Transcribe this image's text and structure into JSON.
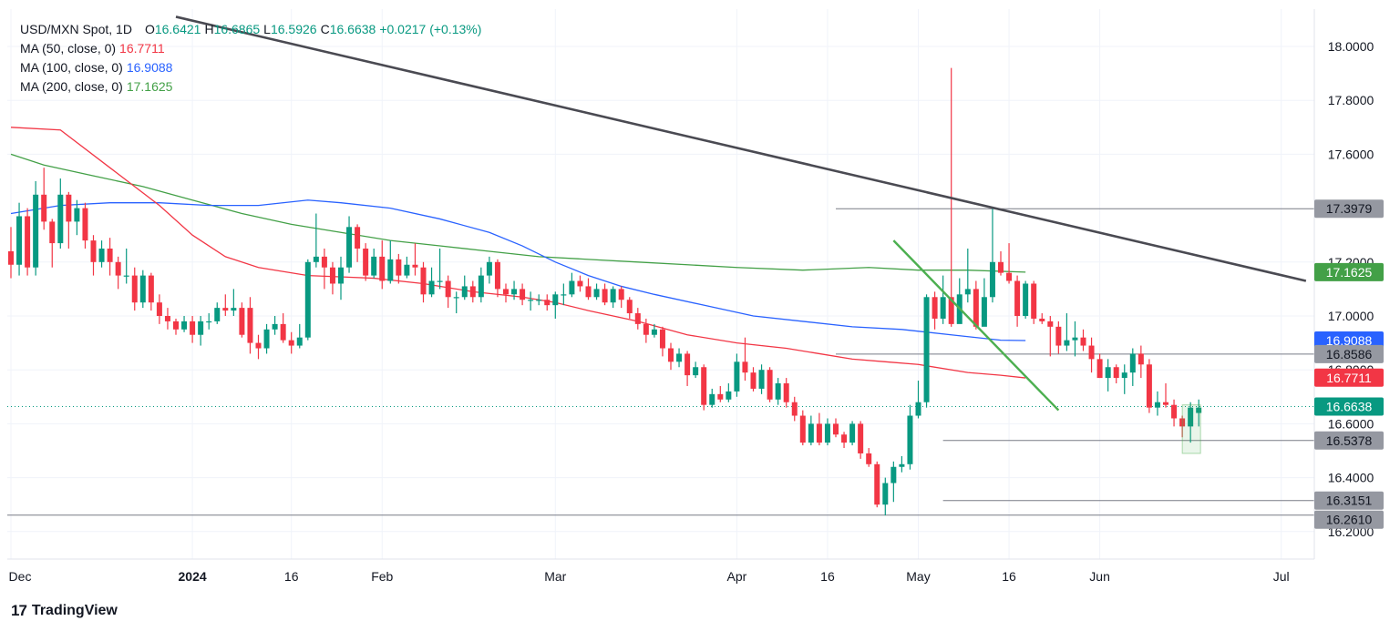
{
  "legend": {
    "symbol": "USD/MXN Spot, 1D",
    "o_label": "O",
    "o_value": "16.6421",
    "h_label": "H",
    "h_value": "16.6865",
    "l_label": "L",
    "l_value": "16.5926",
    "c_label": "C",
    "c_value": "16.6638",
    "change": "+0.0217 (+0.13%)",
    "ma50_label": "MA (50, close, 0)",
    "ma50_value": "16.7711",
    "ma100_label": "MA (100, close, 0)",
    "ma100_value": "16.9088",
    "ma200_label": "MA (200, close, 0)",
    "ma200_value": "17.1625"
  },
  "brand": {
    "logo": "17",
    "name": "TradingView"
  },
  "colors": {
    "up": "#089981",
    "down": "#f23645",
    "ma50": "#f23645",
    "ma100": "#2962ff",
    "ma200": "#43a047",
    "trendline": "#4a4a52",
    "downtrend": "#4caf50",
    "hline": "#787b86"
  },
  "chart_data": {
    "type": "candlestick",
    "title": "USD/MXN Spot, 1D",
    "ylim": [
      16.14,
      18.14
    ],
    "y_ticks": [
      "18.0000",
      "17.8000",
      "17.6000",
      "17.2000",
      "17.0000",
      "16.8000",
      "16.6000",
      "16.4000",
      "16.2000"
    ],
    "x_ticks": [
      "Dec",
      "2024",
      "16",
      "Feb",
      "Mar",
      "Apr",
      "16",
      "May",
      "16",
      "Jun",
      "Jul"
    ],
    "x_tick_positions": [
      0,
      22,
      34,
      45,
      66,
      88,
      99,
      110,
      121,
      132,
      154
    ],
    "price_labels": [
      {
        "text": "17.3979",
        "value": 17.3979,
        "kind": "level"
      },
      {
        "text": "17.1625",
        "value": 17.1625,
        "kind": "ma200"
      },
      {
        "text": "16.9088",
        "value": 16.9088,
        "kind": "ma100"
      },
      {
        "text": "16.8586",
        "value": 16.8586,
        "kind": "level"
      },
      {
        "text": "16.7711",
        "value": 16.7711,
        "kind": "ma50"
      },
      {
        "text": "16.6638",
        "value": 16.6638,
        "kind": "last"
      },
      {
        "text": "16.5378",
        "value": 16.5378,
        "kind": "level"
      },
      {
        "text": "16.3151",
        "value": 16.3151,
        "kind": "level"
      },
      {
        "text": "16.2610",
        "value": 16.261,
        "kind": "level"
      }
    ],
    "horizontal_levels": [
      {
        "value": 17.3979,
        "from_bar": 100
      },
      {
        "value": 16.8586,
        "from_bar": 100
      },
      {
        "value": 16.5378,
        "from_bar": 113
      },
      {
        "value": 16.3151,
        "from_bar": 113
      },
      {
        "value": 16.261,
        "from_bar": 0
      }
    ],
    "trendlines": [
      {
        "name": "long-term downtrend",
        "x1": 20,
        "y1": 18.11,
        "x2": 157,
        "y2": 17.13
      },
      {
        "name": "short-term downtrend",
        "x1": 107,
        "y1": 17.28,
        "x2": 127,
        "y2": 16.65
      }
    ],
    "candles": [
      [
        17.24,
        17.19,
        17.33,
        17.14
      ],
      [
        17.19,
        17.37,
        17.42,
        17.15
      ],
      [
        17.37,
        17.18,
        17.4,
        17.15
      ],
      [
        17.18,
        17.45,
        17.5,
        17.15
      ],
      [
        17.45,
        17.35,
        17.55,
        17.32
      ],
      [
        17.35,
        17.27,
        17.36,
        17.18
      ],
      [
        17.27,
        17.45,
        17.51,
        17.25
      ],
      [
        17.45,
        17.35,
        17.46,
        17.25
      ],
      [
        17.35,
        17.4,
        17.43,
        17.3
      ],
      [
        17.4,
        17.28,
        17.42,
        17.25
      ],
      [
        17.28,
        17.2,
        17.3,
        17.15
      ],
      [
        17.2,
        17.25,
        17.28,
        17.18
      ],
      [
        17.25,
        17.2,
        17.29,
        17.15
      ],
      [
        17.2,
        17.15,
        17.22,
        17.1
      ],
      [
        17.15,
        17.15,
        17.25,
        17.12
      ],
      [
        17.15,
        17.05,
        17.18,
        17.02
      ],
      [
        17.05,
        17.15,
        17.17,
        17.03
      ],
      [
        17.15,
        17.05,
        17.16,
        17.02
      ],
      [
        17.05,
        17.0,
        17.08,
        16.97
      ],
      [
        17.0,
        16.98,
        17.03,
        16.95
      ],
      [
        16.98,
        16.95,
        16.99,
        16.93
      ],
      [
        16.95,
        16.98,
        17.0,
        16.94
      ],
      [
        16.98,
        16.93,
        17.0,
        16.9
      ],
      [
        16.93,
        16.98,
        17.0,
        16.89
      ],
      [
        16.98,
        16.98,
        17.01,
        16.95
      ],
      [
        16.98,
        17.03,
        17.05,
        16.97
      ],
      [
        17.03,
        17.02,
        17.08,
        17.0
      ],
      [
        17.02,
        17.03,
        17.1,
        17.0
      ],
      [
        17.03,
        16.93,
        17.05,
        16.92
      ],
      [
        17.03,
        16.9,
        17.07,
        16.86
      ],
      [
        16.9,
        16.88,
        16.93,
        16.84
      ],
      [
        16.88,
        16.95,
        16.97,
        16.86
      ],
      [
        16.95,
        16.97,
        17.0,
        16.93
      ],
      [
        16.97,
        16.91,
        17.01,
        16.9
      ],
      [
        16.91,
        16.89,
        16.94,
        16.86
      ],
      [
        16.89,
        16.92,
        16.97,
        16.88
      ],
      [
        16.92,
        17.2,
        17.21,
        16.91
      ],
      [
        17.2,
        17.22,
        17.38,
        17.18
      ],
      [
        17.22,
        17.18,
        17.25,
        17.1
      ],
      [
        17.18,
        17.12,
        17.2,
        17.08
      ],
      [
        17.12,
        17.18,
        17.22,
        17.06
      ],
      [
        17.18,
        17.33,
        17.37,
        17.16
      ],
      [
        17.33,
        17.25,
        17.34,
        17.2
      ],
      [
        17.25,
        17.15,
        17.27,
        17.13
      ],
      [
        17.15,
        17.22,
        17.25,
        17.14
      ],
      [
        17.22,
        17.13,
        17.28,
        17.1
      ],
      [
        17.13,
        17.21,
        17.28,
        17.12
      ],
      [
        17.21,
        17.15,
        17.23,
        17.12
      ],
      [
        17.15,
        17.19,
        17.22,
        17.14
      ],
      [
        17.19,
        17.18,
        17.27,
        17.15
      ],
      [
        17.18,
        17.08,
        17.2,
        17.05
      ],
      [
        17.08,
        17.13,
        17.18,
        17.07
      ],
      [
        17.13,
        17.13,
        17.25,
        17.1
      ],
      [
        17.13,
        17.07,
        17.15,
        17.03
      ],
      [
        17.07,
        17.07,
        17.09,
        17.01
      ],
      [
        17.07,
        17.11,
        17.15,
        17.06
      ],
      [
        17.11,
        17.07,
        17.13,
        17.05
      ],
      [
        17.07,
        17.15,
        17.18,
        17.05
      ],
      [
        17.15,
        17.2,
        17.22,
        17.12
      ],
      [
        17.2,
        17.1,
        17.21,
        17.07
      ],
      [
        17.1,
        17.08,
        17.12,
        17.05
      ],
      [
        17.08,
        17.1,
        17.13,
        17.06
      ],
      [
        17.1,
        17.06,
        17.12,
        17.04
      ],
      [
        17.06,
        17.06,
        17.09,
        17.02
      ],
      [
        17.06,
        17.06,
        17.08,
        17.04
      ],
      [
        17.06,
        17.04,
        17.08,
        17.02
      ],
      [
        17.04,
        17.08,
        17.09,
        16.99
      ],
      [
        17.08,
        17.08,
        17.12,
        17.04
      ],
      [
        17.08,
        17.13,
        17.16,
        17.07
      ],
      [
        17.13,
        17.11,
        17.15,
        17.09
      ],
      [
        17.11,
        17.07,
        17.14,
        17.06
      ],
      [
        17.07,
        17.1,
        17.12,
        17.06
      ],
      [
        17.1,
        17.05,
        17.12,
        17.04
      ],
      [
        17.05,
        17.1,
        17.11,
        17.03
      ],
      [
        17.1,
        17.06,
        17.11,
        17.03
      ],
      [
        17.06,
        17.01,
        17.07,
        16.99
      ],
      [
        17.01,
        16.97,
        17.03,
        16.95
      ],
      [
        16.97,
        16.93,
        16.99,
        16.9
      ],
      [
        16.93,
        16.95,
        16.97,
        16.92
      ],
      [
        16.95,
        16.88,
        16.96,
        16.85
      ],
      [
        16.88,
        16.83,
        16.9,
        16.8
      ],
      [
        16.83,
        16.86,
        16.88,
        16.81
      ],
      [
        16.86,
        16.78,
        16.87,
        16.74
      ],
      [
        16.78,
        16.81,
        16.83,
        16.77
      ],
      [
        16.81,
        16.67,
        16.82,
        16.65
      ],
      [
        16.67,
        16.71,
        16.73,
        16.66
      ],
      [
        16.71,
        16.69,
        16.74,
        16.68
      ],
      [
        16.69,
        16.72,
        16.75,
        16.68
      ],
      [
        16.72,
        16.83,
        16.86,
        16.7
      ],
      [
        16.83,
        16.79,
        16.92,
        16.76
      ],
      [
        16.79,
        16.73,
        16.81,
        16.72
      ],
      [
        16.73,
        16.8,
        16.82,
        16.71
      ],
      [
        16.8,
        16.69,
        16.81,
        16.68
      ],
      [
        16.69,
        16.75,
        16.77,
        16.67
      ],
      [
        16.75,
        16.68,
        16.77,
        16.66
      ],
      [
        16.68,
        16.63,
        16.7,
        16.61
      ],
      [
        16.63,
        16.53,
        16.65,
        16.52
      ],
      [
        16.53,
        16.6,
        16.63,
        16.52
      ],
      [
        16.6,
        16.53,
        16.64,
        16.52
      ],
      [
        16.53,
        16.6,
        16.62,
        16.52
      ],
      [
        16.6,
        16.56,
        16.62,
        16.55
      ],
      [
        16.56,
        16.53,
        16.57,
        16.51
      ],
      [
        16.53,
        16.6,
        16.61,
        16.52
      ],
      [
        16.6,
        16.49,
        16.61,
        16.47
      ],
      [
        16.49,
        16.45,
        16.51,
        16.44
      ],
      [
        16.45,
        16.3,
        16.46,
        16.29
      ],
      [
        16.3,
        16.38,
        16.4,
        16.26
      ],
      [
        16.38,
        16.44,
        16.46,
        16.31
      ],
      [
        16.44,
        16.45,
        16.48,
        16.42
      ],
      [
        16.45,
        16.63,
        16.67,
        16.43
      ],
      [
        16.63,
        16.68,
        16.76,
        16.62
      ],
      [
        16.68,
        17.07,
        17.08,
        16.66
      ],
      [
        17.07,
        16.99,
        17.09,
        16.95
      ],
      [
        16.99,
        17.07,
        17.15,
        16.97
      ],
      [
        17.07,
        16.97,
        17.92,
        16.96
      ],
      [
        16.97,
        17.08,
        17.14,
        17.05
      ],
      [
        17.08,
        17.1,
        17.25,
        17.05
      ],
      [
        17.1,
        16.96,
        17.13,
        16.95
      ],
      [
        16.96,
        17.07,
        17.14,
        16.97
      ],
      [
        17.07,
        17.2,
        17.4,
        17.05
      ],
      [
        17.2,
        17.16,
        17.24,
        17.15
      ],
      [
        17.16,
        17.13,
        17.27,
        17.12
      ],
      [
        17.13,
        17.0,
        17.15,
        16.96
      ],
      [
        17.0,
        17.12,
        17.13,
        16.99
      ],
      [
        17.12,
        16.99,
        17.13,
        16.97
      ],
      [
        16.99,
        16.98,
        17.01,
        16.97
      ],
      [
        16.98,
        16.96,
        17.0,
        16.85
      ],
      [
        16.96,
        16.89,
        16.98,
        16.86
      ],
      [
        16.89,
        16.91,
        17.01,
        16.87
      ],
      [
        16.91,
        16.92,
        16.98,
        16.85
      ],
      [
        16.92,
        16.89,
        16.95,
        16.87
      ],
      [
        16.89,
        16.84,
        16.92,
        16.79
      ],
      [
        16.84,
        16.77,
        16.86,
        16.77
      ],
      [
        16.77,
        16.81,
        16.84,
        16.72
      ],
      [
        16.81,
        16.77,
        16.82,
        16.75
      ],
      [
        16.77,
        16.79,
        16.82,
        16.71
      ],
      [
        16.79,
        16.86,
        16.88,
        16.74
      ],
      [
        16.86,
        16.82,
        16.89,
        16.77
      ],
      [
        16.82,
        16.66,
        16.84,
        16.64
      ],
      [
        16.66,
        16.68,
        16.72,
        16.63
      ],
      [
        16.68,
        16.67,
        16.75,
        16.66
      ],
      [
        16.67,
        16.62,
        16.69,
        16.59
      ],
      [
        16.62,
        16.59,
        16.63,
        16.55
      ],
      [
        16.59,
        16.66,
        16.68,
        16.53
      ],
      [
        16.64,
        16.66,
        16.69,
        16.59
      ]
    ],
    "ma50": [
      [
        0,
        17.7
      ],
      [
        6,
        17.69
      ],
      [
        12,
        17.55
      ],
      [
        18,
        17.41
      ],
      [
        22,
        17.3
      ],
      [
        26,
        17.22
      ],
      [
        30,
        17.18
      ],
      [
        36,
        17.15
      ],
      [
        44,
        17.14
      ],
      [
        50,
        17.12
      ],
      [
        56,
        17.09
      ],
      [
        62,
        17.07
      ],
      [
        66,
        17.05
      ],
      [
        70,
        17.02
      ],
      [
        76,
        16.98
      ],
      [
        82,
        16.93
      ],
      [
        88,
        16.9
      ],
      [
        94,
        16.88
      ],
      [
        98,
        16.86
      ],
      [
        102,
        16.84
      ],
      [
        106,
        16.83
      ],
      [
        110,
        16.82
      ],
      [
        116,
        16.79
      ],
      [
        120,
        16.78
      ],
      [
        123,
        16.77
      ]
    ],
    "ma100": [
      [
        0,
        17.38
      ],
      [
        6,
        17.41
      ],
      [
        12,
        17.42
      ],
      [
        18,
        17.42
      ],
      [
        24,
        17.41
      ],
      [
        30,
        17.41
      ],
      [
        36,
        17.43
      ],
      [
        40,
        17.42
      ],
      [
        46,
        17.4
      ],
      [
        52,
        17.36
      ],
      [
        58,
        17.31
      ],
      [
        62,
        17.26
      ],
      [
        66,
        17.2
      ],
      [
        70,
        17.15
      ],
      [
        74,
        17.11
      ],
      [
        78,
        17.08
      ],
      [
        84,
        17.04
      ],
      [
        90,
        17.0
      ],
      [
        96,
        16.98
      ],
      [
        102,
        16.96
      ],
      [
        108,
        16.95
      ],
      [
        114,
        16.93
      ],
      [
        120,
        16.91
      ],
      [
        123,
        16.9088
      ]
    ],
    "ma200": [
      [
        0,
        17.6
      ],
      [
        4,
        17.56
      ],
      [
        10,
        17.52
      ],
      [
        16,
        17.48
      ],
      [
        22,
        17.43
      ],
      [
        28,
        17.38
      ],
      [
        34,
        17.34
      ],
      [
        40,
        17.31
      ],
      [
        46,
        17.28
      ],
      [
        52,
        17.26
      ],
      [
        58,
        17.24
      ],
      [
        64,
        17.22
      ],
      [
        70,
        17.21
      ],
      [
        76,
        17.2
      ],
      [
        82,
        17.19
      ],
      [
        88,
        17.18
      ],
      [
        96,
        17.17
      ],
      [
        104,
        17.18
      ],
      [
        110,
        17.17
      ],
      [
        116,
        17.17
      ],
      [
        123,
        17.1625
      ]
    ]
  }
}
